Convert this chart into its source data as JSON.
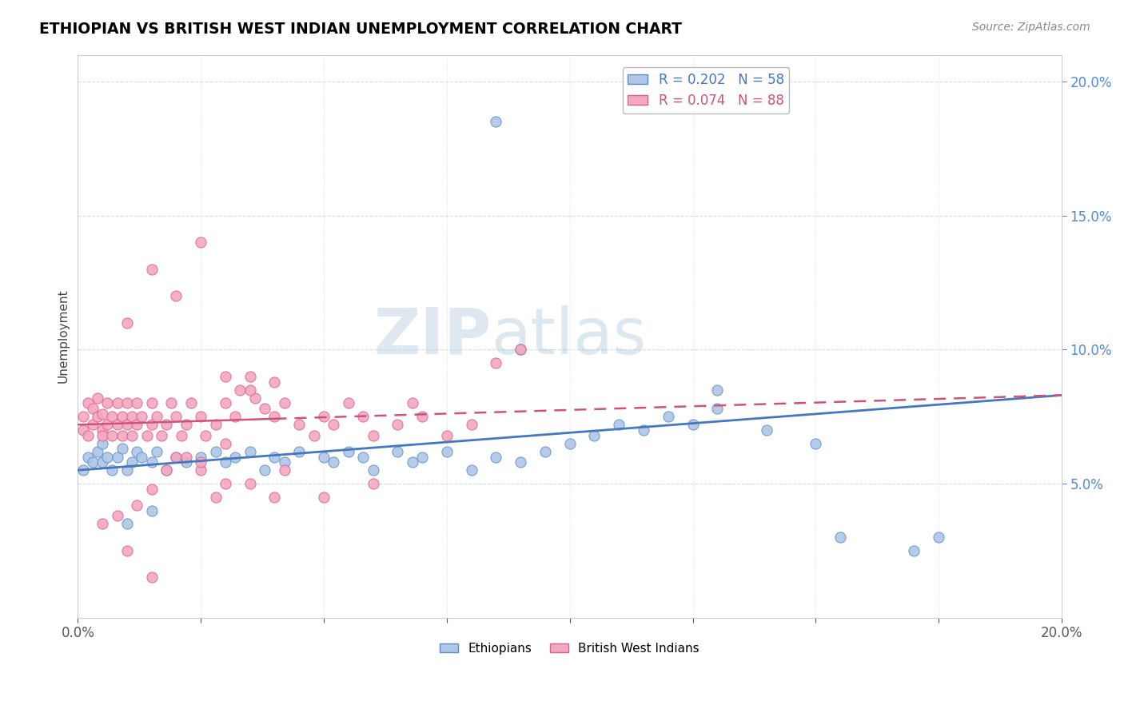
{
  "title": "ETHIOPIAN VS BRITISH WEST INDIAN UNEMPLOYMENT CORRELATION CHART",
  "source": "Source: ZipAtlas.com",
  "ylabel": "Unemployment",
  "blue_color": "#aec6e8",
  "pink_color": "#f4a8c0",
  "blue_edge_color": "#5b8ec4",
  "pink_edge_color": "#d96090",
  "blue_line_color": "#4477bb",
  "pink_line_color": "#cc5577",
  "watermark_zip": "ZIP",
  "watermark_atlas": "atlas",
  "legend_blue": "R = 0.202   N = 58",
  "legend_pink": "R = 0.074   N = 88",
  "xlim": [
    0.0,
    0.2
  ],
  "ylim": [
    0.0,
    0.21
  ],
  "blue_intercept": 0.055,
  "blue_slope": 0.14,
  "pink_intercept": 0.072,
  "pink_slope": 0.055,
  "eth_x": [
    0.001,
    0.002,
    0.003,
    0.004,
    0.005,
    0.005,
    0.006,
    0.007,
    0.008,
    0.009,
    0.01,
    0.011,
    0.012,
    0.013,
    0.015,
    0.016,
    0.018,
    0.02,
    0.022,
    0.025,
    0.028,
    0.03,
    0.032,
    0.035,
    0.038,
    0.04,
    0.042,
    0.045,
    0.05,
    0.052,
    0.055,
    0.058,
    0.06,
    0.065,
    0.068,
    0.07,
    0.075,
    0.08,
    0.085,
    0.09,
    0.095,
    0.1,
    0.105,
    0.11,
    0.115,
    0.12,
    0.125,
    0.13,
    0.14,
    0.085,
    0.09,
    0.13,
    0.15,
    0.155,
    0.17,
    0.175,
    0.01,
    0.015
  ],
  "eth_y": [
    0.055,
    0.06,
    0.058,
    0.062,
    0.058,
    0.065,
    0.06,
    0.055,
    0.06,
    0.063,
    0.055,
    0.058,
    0.062,
    0.06,
    0.058,
    0.062,
    0.055,
    0.06,
    0.058,
    0.06,
    0.062,
    0.058,
    0.06,
    0.062,
    0.055,
    0.06,
    0.058,
    0.062,
    0.06,
    0.058,
    0.062,
    0.06,
    0.055,
    0.062,
    0.058,
    0.06,
    0.062,
    0.055,
    0.06,
    0.058,
    0.062,
    0.065,
    0.068,
    0.072,
    0.07,
    0.075,
    0.072,
    0.078,
    0.07,
    0.185,
    0.1,
    0.085,
    0.065,
    0.03,
    0.025,
    0.03,
    0.035,
    0.04
  ],
  "bwi_x": [
    0.001,
    0.001,
    0.002,
    0.002,
    0.003,
    0.003,
    0.004,
    0.004,
    0.005,
    0.005,
    0.005,
    0.006,
    0.006,
    0.007,
    0.007,
    0.008,
    0.008,
    0.009,
    0.009,
    0.01,
    0.01,
    0.011,
    0.011,
    0.012,
    0.012,
    0.013,
    0.014,
    0.015,
    0.015,
    0.016,
    0.017,
    0.018,
    0.019,
    0.02,
    0.021,
    0.022,
    0.023,
    0.025,
    0.026,
    0.028,
    0.03,
    0.032,
    0.033,
    0.035,
    0.036,
    0.038,
    0.04,
    0.042,
    0.045,
    0.048,
    0.05,
    0.052,
    0.055,
    0.058,
    0.06,
    0.065,
    0.068,
    0.07,
    0.075,
    0.08,
    0.085,
    0.09,
    0.01,
    0.015,
    0.02,
    0.025,
    0.03,
    0.035,
    0.04,
    0.025,
    0.03,
    0.04,
    0.02,
    0.025,
    0.03,
    0.015,
    0.012,
    0.018,
    0.022,
    0.028,
    0.035,
    0.042,
    0.05,
    0.06,
    0.005,
    0.008,
    0.01,
    0.015
  ],
  "bwi_y": [
    0.07,
    0.075,
    0.068,
    0.08,
    0.072,
    0.078,
    0.075,
    0.082,
    0.07,
    0.076,
    0.068,
    0.072,
    0.08,
    0.075,
    0.068,
    0.072,
    0.08,
    0.075,
    0.068,
    0.072,
    0.08,
    0.075,
    0.068,
    0.072,
    0.08,
    0.075,
    0.068,
    0.072,
    0.08,
    0.075,
    0.068,
    0.072,
    0.08,
    0.075,
    0.068,
    0.072,
    0.08,
    0.075,
    0.068,
    0.072,
    0.08,
    0.075,
    0.085,
    0.09,
    0.082,
    0.078,
    0.075,
    0.08,
    0.072,
    0.068,
    0.075,
    0.072,
    0.08,
    0.075,
    0.068,
    0.072,
    0.08,
    0.075,
    0.068,
    0.072,
    0.095,
    0.1,
    0.11,
    0.13,
    0.12,
    0.14,
    0.09,
    0.085,
    0.088,
    0.055,
    0.05,
    0.045,
    0.06,
    0.058,
    0.065,
    0.048,
    0.042,
    0.055,
    0.06,
    0.045,
    0.05,
    0.055,
    0.045,
    0.05,
    0.035,
    0.038,
    0.025,
    0.015
  ]
}
